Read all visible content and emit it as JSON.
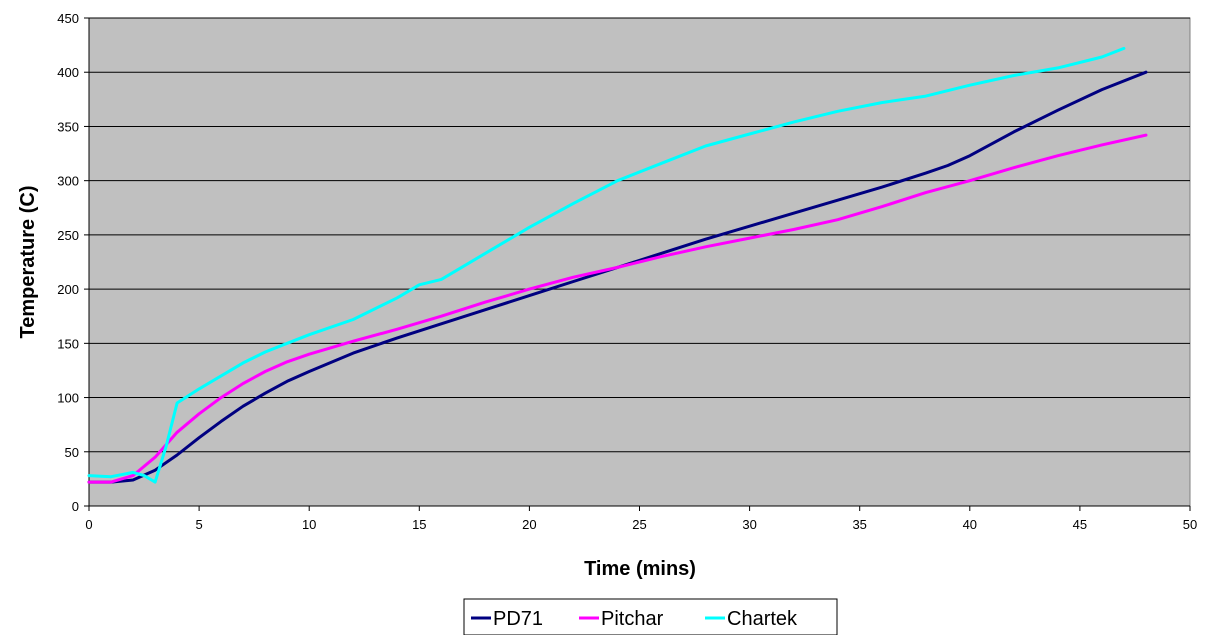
{
  "chart_data": {
    "type": "line",
    "title": "",
    "xlabel": "Time (mins)",
    "ylabel": "Temperature (C)",
    "xlim": [
      0,
      50
    ],
    "ylim": [
      0,
      450
    ],
    "xticks": [
      0,
      5,
      10,
      15,
      20,
      25,
      30,
      35,
      40,
      45,
      50
    ],
    "yticks": [
      0,
      50,
      100,
      150,
      200,
      250,
      300,
      350,
      400,
      450
    ],
    "grid": "horizontal",
    "legend_position": "bottom",
    "plot_background": "#c0c0c0",
    "series": [
      {
        "name": "PD71",
        "color": "#000080",
        "x": [
          0,
          1,
          2,
          3,
          4,
          5,
          6,
          7,
          8,
          9,
          10,
          12,
          14,
          16,
          18,
          20,
          22,
          24,
          26,
          28,
          30,
          32,
          34,
          36,
          38,
          39,
          40,
          42,
          44,
          46,
          48
        ],
        "y": [
          22,
          22,
          24,
          33,
          47,
          63,
          78,
          92,
          104,
          115,
          124,
          141,
          155,
          168,
          181,
          194,
          207,
          220,
          233,
          246,
          258,
          270,
          282,
          294,
          307,
          314,
          323,
          345,
          365,
          384,
          400
        ]
      },
      {
        "name": "Pitchar",
        "color": "#ff00ff",
        "x": [
          0,
          1,
          2,
          3,
          4,
          5,
          6,
          7,
          8,
          9,
          10,
          12,
          14,
          16,
          18,
          20,
          22,
          24,
          26,
          28,
          30,
          32,
          34,
          36,
          38,
          40,
          42,
          44,
          46,
          48
        ],
        "y": [
          22,
          22,
          28,
          45,
          68,
          85,
          100,
          113,
          124,
          133,
          140,
          152,
          163,
          175,
          188,
          200,
          211,
          220,
          230,
          239,
          247,
          255,
          264,
          276,
          289,
          300,
          312,
          323,
          333,
          342
        ]
      },
      {
        "name": "Chartek",
        "color": "#00ffff",
        "x": [
          0,
          1,
          2,
          2.5,
          3,
          3.5,
          4,
          5,
          6,
          7,
          8,
          9,
          10,
          12,
          14,
          15,
          16,
          18,
          20,
          22,
          24,
          26,
          28,
          30,
          32,
          34,
          36,
          38,
          40,
          42,
          44,
          46,
          47
        ],
        "y": [
          28,
          27,
          31,
          28,
          22,
          55,
          95,
          108,
          120,
          132,
          142,
          150,
          158,
          172,
          192,
          204,
          209,
          233,
          257,
          279,
          300,
          316,
          332,
          343,
          354,
          364,
          372,
          378,
          388,
          397,
          404,
          414,
          422
        ]
      }
    ]
  }
}
